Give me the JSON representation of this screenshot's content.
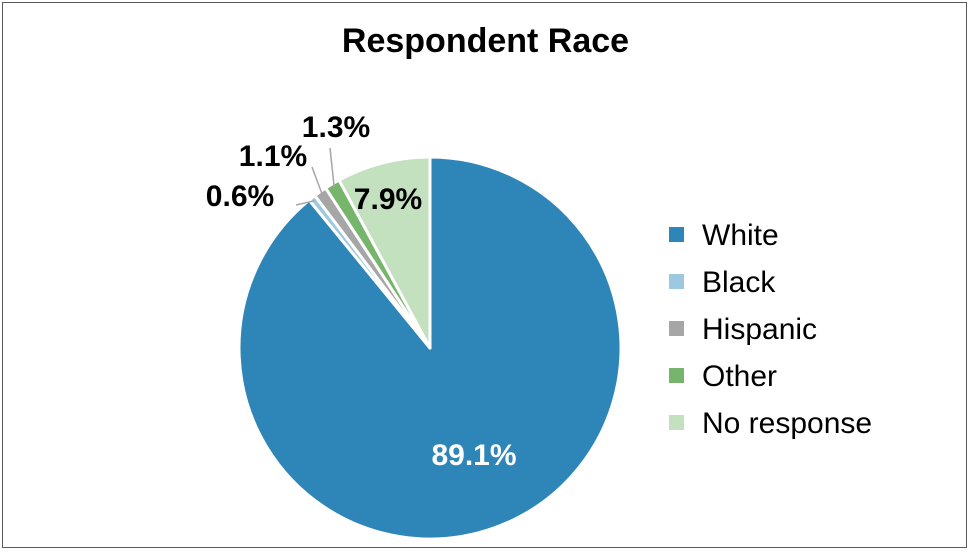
{
  "chart_data": {
    "type": "pie",
    "title": "Respondent Race",
    "slices": [
      {
        "name": "White",
        "value": 89.1,
        "label": "89.1%",
        "color": "#2e86b8"
      },
      {
        "name": "Black",
        "value": 0.6,
        "label": "0.6%",
        "color": "#9cc9e0"
      },
      {
        "name": "Hispanic",
        "value": 1.1,
        "label": "1.1%",
        "color": "#a6a6a6"
      },
      {
        "name": "Other",
        "value": 1.3,
        "label": "1.3%",
        "color": "#76b56b"
      },
      {
        "name": "No response",
        "value": 7.9,
        "label": "7.9%",
        "color": "#c3e0bf"
      }
    ],
    "legend_position": "right"
  }
}
